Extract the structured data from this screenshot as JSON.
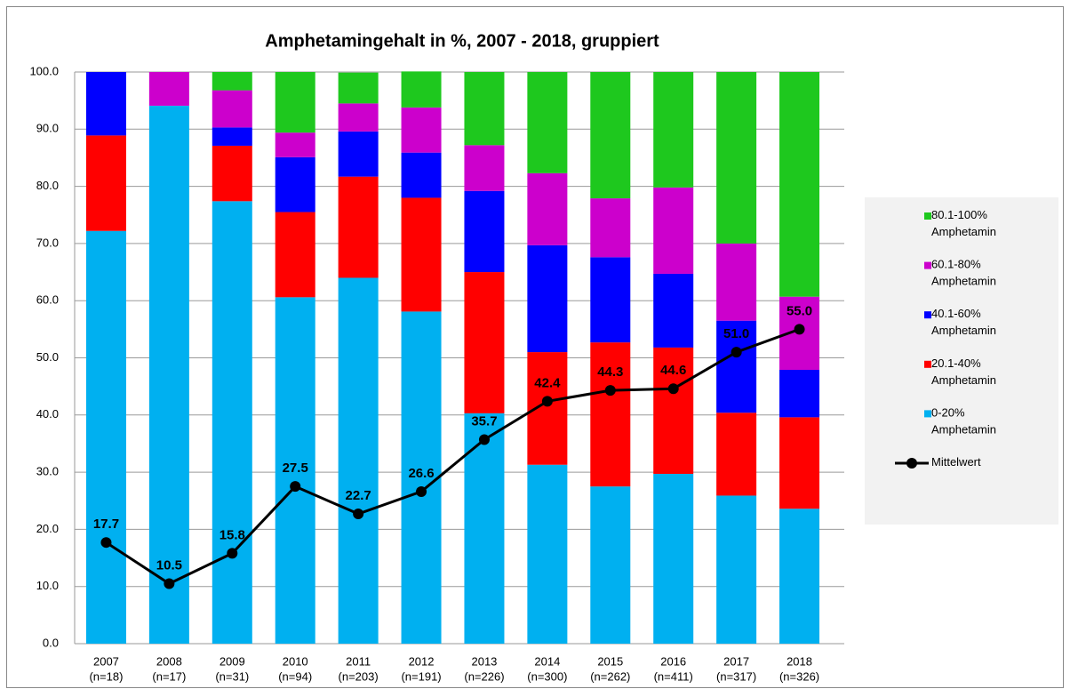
{
  "chart_data": {
    "type": "stacked-bar-line",
    "title": "Amphetamingehalt in %, 2007 - 2018, gruppiert",
    "categories": [
      "2007",
      "2008",
      "2009",
      "2010",
      "2011",
      "2012",
      "2013",
      "2014",
      "2015",
      "2016",
      "2017",
      "2018"
    ],
    "category_sublabels": [
      "(n=18)",
      "(n=17)",
      "(n=31)",
      "(n=94)",
      "(n=203)",
      "(n=191)",
      "(n=226)",
      "(n=300)",
      "(n=262)",
      "(n=411)",
      "(n=317)",
      "(n=326)"
    ],
    "series": [
      {
        "name": "0-20% Amphetamin",
        "color": "#00b0f0",
        "values": [
          72.2,
          94.1,
          77.4,
          60.6,
          64.0,
          58.1,
          40.3,
          31.3,
          27.5,
          29.7,
          25.9,
          23.6
        ]
      },
      {
        "name": "20.1-40% Amphetamin",
        "color": "#ff0000",
        "values": [
          16.7,
          0,
          9.7,
          14.9,
          17.7,
          19.9,
          24.7,
          19.7,
          25.2,
          22.1,
          14.5,
          16.0
        ]
      },
      {
        "name": "40.1-60% Amphetamin",
        "color": "#0000ff",
        "values": [
          11.1,
          0,
          3.2,
          9.6,
          7.9,
          7.9,
          14.2,
          18.7,
          14.9,
          12.9,
          16.1,
          8.3
        ]
      },
      {
        "name": "60.1-80% Amphetamin",
        "color": "#cc00cc",
        "values": [
          0,
          5.9,
          6.5,
          4.3,
          4.9,
          7.9,
          8.0,
          12.6,
          10.3,
          15.1,
          13.5,
          12.8
        ]
      },
      {
        "name": "80.1-100% Amphetamin",
        "color": "#1ec81e",
        "values": [
          0,
          0,
          3.2,
          10.6,
          5.4,
          6.3,
          12.8,
          17.7,
          22.1,
          20.2,
          30.0,
          39.3
        ]
      },
      {
        "name": "Mittelwert",
        "color": "#000000",
        "type": "line",
        "values": [
          17.7,
          10.5,
          15.8,
          27.5,
          22.7,
          26.6,
          35.7,
          42.4,
          44.3,
          44.6,
          51.0,
          55.0
        ],
        "value_labels": [
          "17.7",
          "10.5",
          "15.8",
          "27.5",
          "22.7",
          "26.6",
          "35.7",
          "42.4",
          "44.3",
          "44.6",
          "51.0",
          "55.0"
        ]
      }
    ],
    "ylim": [
      0,
      100
    ],
    "yticks": [
      {
        "value": 0,
        "label": "0.0"
      },
      {
        "value": 10,
        "label": "10.0"
      },
      {
        "value": 20,
        "label": "20.0"
      },
      {
        "value": 30,
        "label": "30.0"
      },
      {
        "value": 40,
        "label": "40.0"
      },
      {
        "value": 50,
        "label": "50.0"
      },
      {
        "value": 60,
        "label": "60.0"
      },
      {
        "value": 70,
        "label": "70.0"
      },
      {
        "value": 80,
        "label": "80.0"
      },
      {
        "value": 90,
        "label": "90.0"
      },
      {
        "value": 100,
        "label": "100.0"
      }
    ],
    "grid": true,
    "legend": "right"
  }
}
